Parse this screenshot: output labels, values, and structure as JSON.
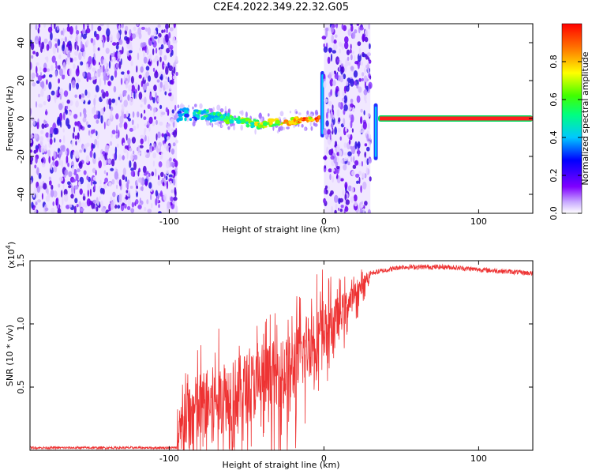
{
  "title": "C2E4.2022.349.22.32.G05",
  "colors": {
    "snr_line": "#ee3333",
    "axis": "#000000"
  },
  "chart_data": [
    {
      "type": "heatmap",
      "name": "spectrogram",
      "xlabel": "Height of straight line (km)",
      "ylabel": "Frequency (Hz)",
      "xlim": [
        -190,
        135
      ],
      "ylim": [
        -50,
        50
      ],
      "xticks": [
        -100,
        0,
        100
      ],
      "yticks": [
        -40,
        -20,
        0,
        20,
        40
      ],
      "colorbar": {
        "label": "Normalized spectral amplitude",
        "range": [
          0,
          1
        ],
        "ticks": [
          "0.0",
          "0.2",
          "0.4",
          "0.6",
          "0.8"
        ],
        "colormap": "rainbow (purple to red)"
      },
      "regions": [
        {
          "from": -190,
          "to": -95,
          "kind": "noise"
        },
        {
          "from": -95,
          "to": -2,
          "kind": "signal",
          "freq_hz": [
            2,
            2,
            1,
            -1,
            -3,
            -2,
            -1,
            0
          ]
        },
        {
          "from": -2,
          "to": 0,
          "kind": "spike",
          "freq_hz": [
            -10,
            25
          ]
        },
        {
          "from": 0,
          "to": 30,
          "kind": "noise"
        },
        {
          "from": 32,
          "to": 35,
          "kind": "spike",
          "freq_hz": [
            -22,
            8
          ]
        },
        {
          "from": 35,
          "to": 135,
          "kind": "carrier",
          "freq_hz": 0
        }
      ]
    },
    {
      "type": "line",
      "name": "snr",
      "xlabel": "Height of straight line (km)",
      "ylabel": "SNR (10 * v/v)",
      "scale_label": "(x10",
      "scale_exp": "4",
      "scale_close": ")",
      "xlim": [
        -190,
        135
      ],
      "ylim": [
        0,
        1.5
      ],
      "xticks": [
        -100,
        0,
        100
      ],
      "yticks": [
        "0.5",
        "1.0",
        "1.5"
      ],
      "envelope": [
        {
          "x": -190,
          "y": 0.02
        },
        {
          "x": -95,
          "y": 0.02
        },
        {
          "x": -90,
          "y": 0.3
        },
        {
          "x": -80,
          "y": 0.4
        },
        {
          "x": -60,
          "y": 0.5
        },
        {
          "x": -40,
          "y": 0.6
        },
        {
          "x": -20,
          "y": 0.7
        },
        {
          "x": -10,
          "y": 0.9
        },
        {
          "x": 0,
          "y": 1.0
        },
        {
          "x": 10,
          "y": 1.1
        },
        {
          "x": 20,
          "y": 1.25
        },
        {
          "x": 30,
          "y": 1.4
        },
        {
          "x": 50,
          "y": 1.45
        },
        {
          "x": 80,
          "y": 1.45
        },
        {
          "x": 100,
          "y": 1.43
        },
        {
          "x": 135,
          "y": 1.4
        }
      ]
    }
  ]
}
